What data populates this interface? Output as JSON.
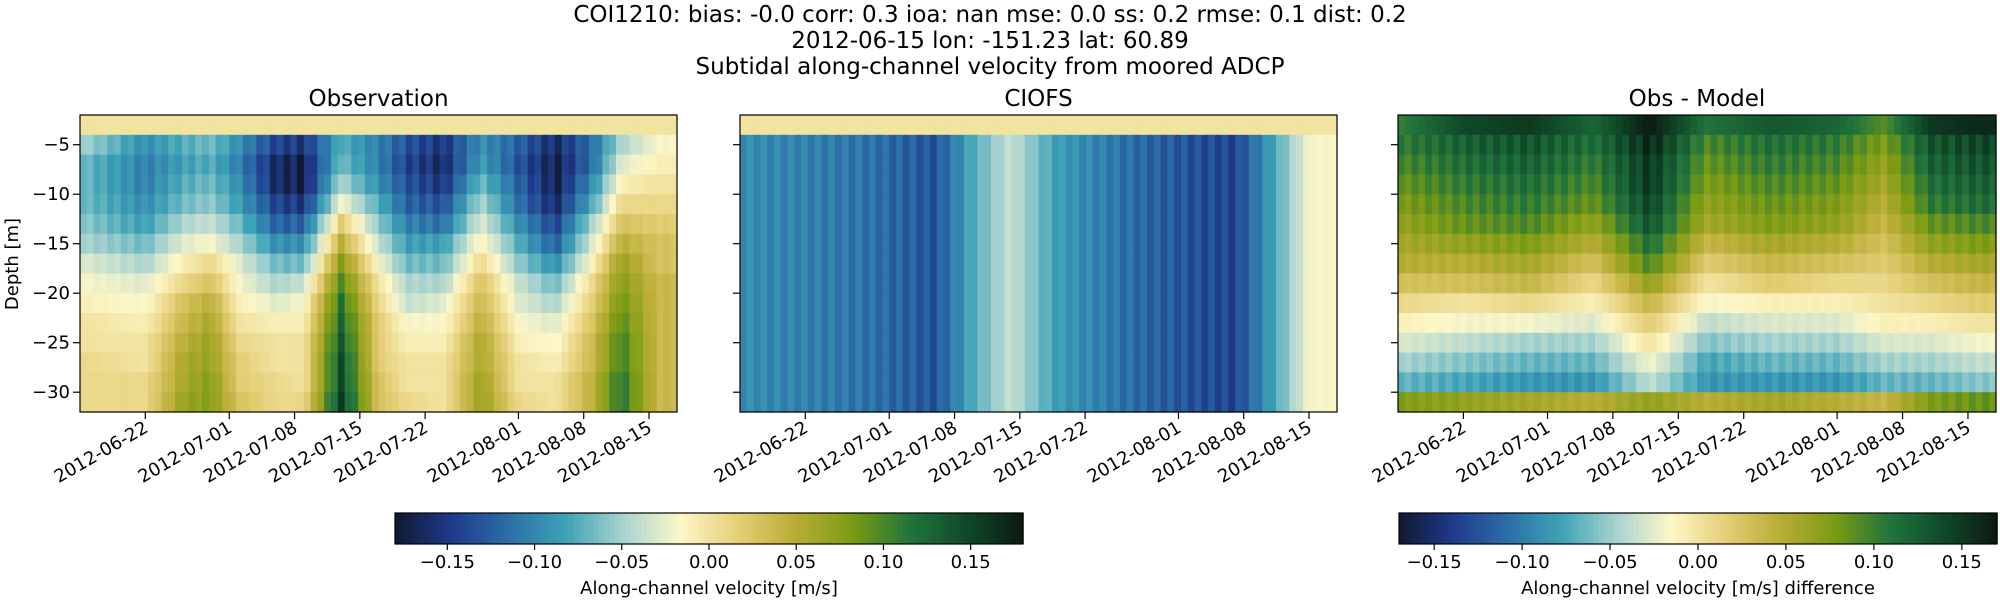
{
  "chart_data": {
    "type": "heatmap",
    "suptitle": [
      "COI1210: bias: -0.0  corr: 0.3  ioa: nan  mse: 0.0  ss: 0.2  rmse: 0.1  dist: 0.2",
      "2012-06-15 lon: -151.23 lat: 60.89",
      "Subtidal along-channel velocity from moored ADCP"
    ],
    "ylabel": "Depth [m]",
    "ylim": [
      -32,
      -2
    ],
    "yticks": [
      -5,
      -10,
      -15,
      -20,
      -25,
      -30
    ],
    "yticklabels": [
      "−5",
      "−10",
      "−15",
      "−20",
      "−25",
      "−30"
    ],
    "xlim": [
      "2012-06-15",
      "2012-08-18"
    ],
    "xticks": [
      "2012-06-22",
      "2012-07-01",
      "2012-07-08",
      "2012-07-15",
      "2012-07-22",
      "2012-08-01",
      "2012-08-08",
      "2012-08-15"
    ],
    "depth_bins": [
      -3,
      -5,
      -7,
      -9,
      -11,
      -13,
      -15,
      -17,
      -19,
      -21,
      -23,
      -25,
      -27,
      -29,
      -31
    ],
    "panels": [
      {
        "title": "Observation",
        "colormap": "delta",
        "vmin": -0.18,
        "vmax": 0.18,
        "cells": [
          {
            "date": "2012-06-15",
            "values": [
              0.0,
              -0.05,
              -0.07,
              -0.07,
              -0.07,
              -0.06,
              -0.05,
              -0.03,
              -0.02,
              -0.01,
              0.0,
              0.0,
              0.01,
              0.01,
              0.01
            ]
          },
          {
            "date": "2012-06-22",
            "values": [
              0.0,
              -0.1,
              -0.11,
              -0.11,
              -0.1,
              -0.09,
              -0.07,
              -0.05,
              -0.03,
              -0.02,
              -0.01,
              0.0,
              0.0,
              0.01,
              0.01
            ]
          },
          {
            "date": "2012-06-26",
            "values": [
              0.0,
              -0.08,
              -0.09,
              -0.08,
              -0.07,
              -0.05,
              -0.03,
              -0.01,
              0.01,
              0.03,
              0.04,
              0.05,
              0.06,
              0.06,
              0.07
            ]
          },
          {
            "date": "2012-06-29",
            "values": [
              0.0,
              -0.07,
              -0.08,
              -0.07,
              -0.06,
              -0.04,
              -0.02,
              0.01,
              0.03,
              0.05,
              0.06,
              0.07,
              0.07,
              0.08,
              0.08
            ]
          },
          {
            "date": "2012-07-02",
            "values": [
              0.0,
              -0.1,
              -0.11,
              -0.1,
              -0.09,
              -0.07,
              -0.05,
              -0.03,
              -0.02,
              -0.01,
              0.0,
              0.01,
              0.02,
              0.02,
              0.03
            ]
          },
          {
            "date": "2012-07-06",
            "values": [
              0.0,
              -0.15,
              -0.17,
              -0.17,
              -0.15,
              -0.13,
              -0.1,
              -0.07,
              -0.05,
              -0.03,
              -0.01,
              0.0,
              0.0,
              0.01,
              0.01
            ]
          },
          {
            "date": "2012-07-09",
            "values": [
              0.0,
              -0.16,
              -0.18,
              -0.18,
              -0.16,
              -0.13,
              -0.1,
              -0.07,
              -0.04,
              -0.02,
              -0.01,
              0.0,
              0.0,
              0.0,
              0.01
            ]
          },
          {
            "date": "2012-07-13",
            "values": [
              0.0,
              -0.08,
              -0.07,
              -0.05,
              -0.02,
              0.02,
              0.05,
              0.08,
              0.1,
              0.12,
              0.13,
              0.14,
              0.15,
              0.15,
              0.16
            ]
          },
          {
            "date": "2012-07-17",
            "values": [
              0.0,
              -0.11,
              -0.11,
              -0.1,
              -0.08,
              -0.06,
              -0.04,
              -0.02,
              0.0,
              0.01,
              0.02,
              0.02,
              0.02,
              0.03,
              0.03
            ]
          },
          {
            "date": "2012-07-20",
            "values": [
              0.0,
              -0.14,
              -0.15,
              -0.14,
              -0.13,
              -0.11,
              -0.09,
              -0.07,
              -0.05,
              -0.04,
              -0.02,
              -0.01,
              0.0,
              0.0,
              0.01
            ]
          },
          {
            "date": "2012-07-24",
            "values": [
              0.0,
              -0.16,
              -0.17,
              -0.16,
              -0.14,
              -0.12,
              -0.09,
              -0.07,
              -0.05,
              -0.03,
              -0.02,
              -0.01,
              0.0,
              0.0,
              0.0
            ]
          },
          {
            "date": "2012-07-28",
            "values": [
              0.0,
              -0.1,
              -0.09,
              -0.07,
              -0.05,
              -0.03,
              -0.01,
              0.01,
              0.03,
              0.04,
              0.05,
              0.06,
              0.06,
              0.07,
              0.07
            ]
          },
          {
            "date": "2012-08-01",
            "values": [
              0.0,
              -0.13,
              -0.14,
              -0.13,
              -0.12,
              -0.1,
              -0.08,
              -0.06,
              -0.04,
              -0.03,
              -0.02,
              -0.01,
              0.0,
              0.0,
              0.01
            ]
          },
          {
            "date": "2012-08-05",
            "values": [
              0.0,
              -0.17,
              -0.18,
              -0.18,
              -0.17,
              -0.15,
              -0.13,
              -0.1,
              -0.07,
              -0.05,
              -0.03,
              -0.02,
              -0.01,
              0.0,
              0.0
            ]
          },
          {
            "date": "2012-08-09",
            "values": [
              0.0,
              -0.12,
              -0.12,
              -0.1,
              -0.08,
              -0.05,
              -0.03,
              -0.01,
              0.01,
              0.02,
              0.03,
              0.04,
              0.04,
              0.05,
              0.05
            ]
          },
          {
            "date": "2012-08-12",
            "values": [
              0.0,
              -0.05,
              -0.03,
              -0.01,
              0.01,
              0.03,
              0.05,
              0.07,
              0.08,
              0.09,
              0.1,
              0.11,
              0.11,
              0.12,
              0.12
            ]
          },
          {
            "date": "2012-08-16",
            "values": [
              0.0,
              -0.02,
              -0.01,
              0.0,
              0.01,
              0.02,
              0.03,
              0.03,
              0.04,
              0.04,
              0.04,
              0.04,
              0.04,
              0.04,
              0.04
            ]
          }
        ]
      },
      {
        "title": "CIOFS",
        "colormap": "delta",
        "vmin": -0.18,
        "vmax": 0.18,
        "cells": [
          {
            "date": "2012-06-15",
            "values": [
              0.0,
              -0.1,
              -0.1,
              -0.1,
              -0.1,
              -0.1,
              -0.1,
              -0.1,
              -0.1,
              -0.1,
              -0.1,
              -0.1,
              -0.1,
              -0.1,
              -0.1
            ]
          },
          {
            "date": "2012-06-22",
            "values": [
              0.0,
              -0.11,
              -0.11,
              -0.11,
              -0.11,
              -0.11,
              -0.11,
              -0.11,
              -0.11,
              -0.11,
              -0.11,
              -0.11,
              -0.11,
              -0.11,
              -0.11
            ]
          },
          {
            "date": "2012-06-29",
            "values": [
              0.0,
              -0.12,
              -0.12,
              -0.12,
              -0.12,
              -0.12,
              -0.12,
              -0.12,
              -0.12,
              -0.12,
              -0.12,
              -0.12,
              -0.12,
              -0.12,
              -0.12
            ]
          },
          {
            "date": "2012-07-06",
            "values": [
              0.0,
              -0.14,
              -0.14,
              -0.14,
              -0.14,
              -0.14,
              -0.14,
              -0.14,
              -0.14,
              -0.14,
              -0.14,
              -0.14,
              -0.14,
              -0.14,
              -0.14
            ]
          },
          {
            "date": "2012-07-10",
            "values": [
              0.0,
              -0.08,
              -0.08,
              -0.08,
              -0.08,
              -0.08,
              -0.08,
              -0.08,
              -0.08,
              -0.08,
              -0.08,
              -0.08,
              -0.08,
              -0.08,
              -0.08
            ]
          },
          {
            "date": "2012-07-14",
            "values": [
              0.0,
              -0.04,
              -0.04,
              -0.04,
              -0.04,
              -0.04,
              -0.04,
              -0.04,
              -0.04,
              -0.04,
              -0.04,
              -0.04,
              -0.04,
              -0.04,
              -0.04
            ]
          },
          {
            "date": "2012-07-19",
            "values": [
              0.0,
              -0.09,
              -0.09,
              -0.09,
              -0.09,
              -0.09,
              -0.09,
              -0.09,
              -0.09,
              -0.09,
              -0.09,
              -0.09,
              -0.09,
              -0.09,
              -0.09
            ]
          },
          {
            "date": "2012-07-26",
            "values": [
              0.0,
              -0.12,
              -0.12,
              -0.12,
              -0.12,
              -0.12,
              -0.12,
              -0.12,
              -0.12,
              -0.12,
              -0.12,
              -0.12,
              -0.12,
              -0.12,
              -0.12
            ]
          },
          {
            "date": "2012-08-02",
            "values": [
              0.0,
              -0.14,
              -0.14,
              -0.14,
              -0.14,
              -0.14,
              -0.14,
              -0.14,
              -0.14,
              -0.14,
              -0.14,
              -0.14,
              -0.14,
              -0.14,
              -0.14
            ]
          },
          {
            "date": "2012-08-07",
            "values": [
              0.0,
              -0.15,
              -0.15,
              -0.15,
              -0.15,
              -0.15,
              -0.15,
              -0.15,
              -0.15,
              -0.15,
              -0.15,
              -0.15,
              -0.15,
              -0.15,
              -0.15
            ]
          },
          {
            "date": "2012-08-11",
            "values": [
              0.0,
              -0.09,
              -0.09,
              -0.09,
              -0.09,
              -0.09,
              -0.09,
              -0.09,
              -0.09,
              -0.09,
              -0.09,
              -0.09,
              -0.09,
              -0.09,
              -0.09
            ]
          },
          {
            "date": "2012-08-15",
            "values": [
              0.0,
              -0.02,
              -0.02,
              -0.02,
              -0.02,
              -0.02,
              -0.02,
              -0.02,
              -0.02,
              -0.02,
              -0.02,
              -0.02,
              -0.02,
              -0.02,
              -0.02
            ]
          }
        ]
      },
      {
        "title": "Obs - Model",
        "colormap": "delta",
        "vmin": -0.17,
        "vmax": 0.17,
        "cells": [
          {
            "date": "2012-06-15",
            "values": [
              0.1,
              0.11,
              0.1,
              0.09,
              0.08,
              0.07,
              0.06,
              0.05,
              0.03,
              0.01,
              -0.01,
              -0.03,
              -0.05,
              -0.07,
              0.08
            ]
          },
          {
            "date": "2012-06-22",
            "values": [
              0.14,
              0.13,
              0.12,
              0.11,
              0.1,
              0.09,
              0.07,
              0.05,
              0.03,
              0.0,
              -0.02,
              -0.04,
              -0.06,
              -0.08,
              0.07
            ]
          },
          {
            "date": "2012-06-29",
            "values": [
              0.15,
              0.14,
              0.13,
              0.12,
              0.11,
              0.1,
              0.08,
              0.06,
              0.04,
              0.01,
              -0.02,
              -0.05,
              -0.07,
              -0.09,
              0.06
            ]
          },
          {
            "date": "2012-07-06",
            "values": [
              0.12,
              0.12,
              0.11,
              0.1,
              0.09,
              0.07,
              0.05,
              0.03,
              0.01,
              -0.01,
              -0.03,
              -0.05,
              -0.07,
              -0.09,
              0.05
            ]
          },
          {
            "date": "2012-07-12",
            "values": [
              0.17,
              0.17,
              0.16,
              0.16,
              0.15,
              0.14,
              0.12,
              0.1,
              0.07,
              0.04,
              0.02,
              0.0,
              -0.02,
              -0.04,
              0.07
            ]
          },
          {
            "date": "2012-07-18",
            "values": [
              0.11,
              0.1,
              0.09,
              0.08,
              0.07,
              0.06,
              0.04,
              0.02,
              0.0,
              -0.02,
              -0.04,
              -0.06,
              -0.08,
              -0.09,
              0.05
            ]
          },
          {
            "date": "2012-07-25",
            "values": [
              0.13,
              0.12,
              0.11,
              0.1,
              0.09,
              0.08,
              0.06,
              0.04,
              0.02,
              -0.01,
              -0.03,
              -0.05,
              -0.07,
              -0.09,
              0.06
            ]
          },
          {
            "date": "2012-08-01",
            "values": [
              0.12,
              0.11,
              0.1,
              0.09,
              0.08,
              0.07,
              0.05,
              0.03,
              0.01,
              -0.01,
              -0.03,
              -0.05,
              -0.07,
              -0.09,
              0.05
            ]
          },
          {
            "date": "2012-08-06",
            "values": [
              0.09,
              0.08,
              0.07,
              0.06,
              0.05,
              0.04,
              0.03,
              0.02,
              0.01,
              0.0,
              -0.01,
              -0.03,
              -0.05,
              -0.07,
              0.04
            ]
          },
          {
            "date": "2012-08-11",
            "values": [
              0.15,
              0.14,
              0.13,
              0.12,
              0.11,
              0.09,
              0.07,
              0.05,
              0.03,
              0.01,
              -0.01,
              -0.03,
              -0.05,
              -0.07,
              0.08
            ]
          },
          {
            "date": "2012-08-16",
            "values": [
              0.16,
              0.15,
              0.14,
              0.13,
              0.12,
              0.1,
              0.08,
              0.06,
              0.04,
              0.02,
              0.0,
              -0.02,
              -0.04,
              -0.06,
              0.09
            ]
          }
        ]
      }
    ],
    "colorbars": [
      {
        "label": "Along-channel velocity [m/s]",
        "range": [
          -0.18,
          0.18
        ],
        "ticks": [
          -0.15,
          -0.1,
          -0.05,
          0.0,
          0.05,
          0.1,
          0.15
        ],
        "ticklabels": [
          "−0.15",
          "−0.10",
          "−0.05",
          "0.00",
          "0.05",
          "0.10",
          "0.15"
        ]
      },
      {
        "label": "Along-channel velocity [m/s] difference",
        "range": [
          -0.17,
          0.17
        ],
        "ticks": [
          -0.15,
          -0.1,
          -0.05,
          0.0,
          0.05,
          0.1,
          0.15
        ],
        "ticklabels": [
          "−0.15",
          "−0.10",
          "−0.05",
          "0.00",
          "0.05",
          "0.10",
          "0.15"
        ]
      }
    ],
    "colormap_stops": [
      "#101830",
      "#1f3a8a",
      "#2c6fa8",
      "#3ea3b6",
      "#a8d3d0",
      "#fdf7c8",
      "#e5cf78",
      "#b9ad35",
      "#7c9c13",
      "#22753c",
      "#0f4a2a",
      "#0c1a12"
    ]
  }
}
